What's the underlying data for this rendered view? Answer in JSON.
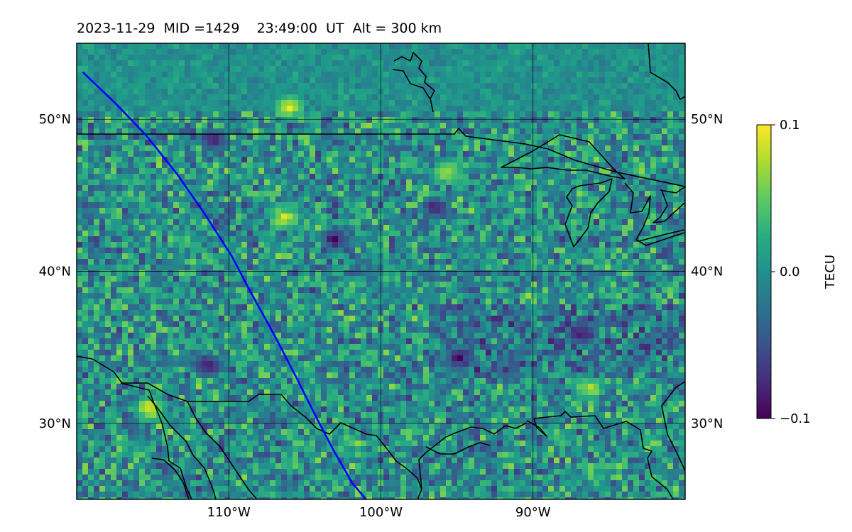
{
  "chart_data": {
    "type": "heatmap",
    "title": "2023-11-29  MID =1429    23:49:00  UT  Alt = 300 km",
    "map": {
      "lon_range": [
        -120,
        -80
      ],
      "lat_range": [
        25,
        55
      ],
      "x_ticks": [
        -110,
        -100,
        -90
      ],
      "x_tick_labels": [
        "110°W",
        "100°W",
        "90°W"
      ],
      "y_ticks": [
        30,
        40,
        50
      ],
      "y_tick_labels": [
        "30°N",
        "40°N",
        "50°N"
      ],
      "grid": true,
      "coastlines": true,
      "borders": true
    },
    "colorbar": {
      "label": "TECU",
      "colormap": "viridis",
      "vmin": -0.1,
      "vmax": 0.1,
      "ticks": [
        0.1,
        0.0,
        -0.1
      ],
      "tick_labels": [
        "0.1",
        "0.0",
        "−0.1"
      ]
    },
    "satellite_track": {
      "color": "#0000ff",
      "lon": [
        -119.6,
        -117.4,
        -115.4,
        -113.4,
        -111.6,
        -109.8,
        -108.6,
        -107.0,
        -105.5,
        -104.2,
        -103.1,
        -101.9,
        -100.9,
        -99.8
      ],
      "lat": [
        53.1,
        51.0,
        48.9,
        46.4,
        43.8,
        41.0,
        38.7,
        35.8,
        32.9,
        30.3,
        28.2,
        26.1,
        24.9,
        25.0
      ]
    },
    "notable_cells": [
      {
        "lon": -106.0,
        "lat": 50.8,
        "value": 0.1
      },
      {
        "lon": -115.2,
        "lat": 31.0,
        "value": 0.1
      },
      {
        "lon": -106.3,
        "lat": 43.5,
        "value": 0.1
      },
      {
        "lon": -95.6,
        "lat": 46.4,
        "value": 0.08
      },
      {
        "lon": -86.3,
        "lat": 32.3,
        "value": 0.08
      },
      {
        "lon": -111.4,
        "lat": 33.8,
        "value": -0.1
      },
      {
        "lon": -103.0,
        "lat": 42.1,
        "value": -0.1
      },
      {
        "lon": -94.8,
        "lat": 34.3,
        "value": -0.09
      },
      {
        "lon": -86.8,
        "lat": 35.9,
        "value": -0.09
      },
      {
        "lon": -111.0,
        "lat": 48.6,
        "value": -0.09
      },
      {
        "lon": -96.4,
        "lat": 44.1,
        "value": -0.09
      }
    ],
    "colors": {
      "track": "#0000ff",
      "coastline": "#000000",
      "grid": "#000000"
    }
  }
}
